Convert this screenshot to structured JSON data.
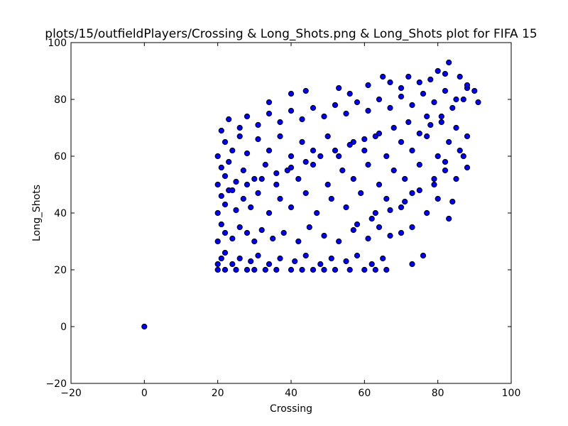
{
  "chart_data": {
    "type": "scatter",
    "title": "plots/15/outfieldPlayers/Crossing & Long_Shots.png & Long_Shots plot for FIFA 15",
    "xlabel": "Crossing",
    "ylabel": "Long_Shots",
    "xlim": [
      -20,
      100
    ],
    "ylim": [
      -20,
      100
    ],
    "xticks": [
      -20,
      0,
      20,
      40,
      60,
      80,
      100
    ],
    "yticks": [
      -20,
      0,
      20,
      40,
      60,
      80,
      100
    ],
    "grid": false,
    "legend": "none",
    "marker_color": "#0000ff",
    "marker_edge_color": "#000000",
    "points": [
      [
        0,
        0
      ],
      [
        20,
        20
      ],
      [
        22,
        20
      ],
      [
        25,
        20
      ],
      [
        28,
        20
      ],
      [
        30,
        20
      ],
      [
        33,
        20
      ],
      [
        36,
        20
      ],
      [
        40,
        20
      ],
      [
        43,
        20
      ],
      [
        46,
        20
      ],
      [
        49,
        20
      ],
      [
        52,
        20
      ],
      [
        56,
        20
      ],
      [
        60,
        20
      ],
      [
        63,
        20
      ],
      [
        66,
        20
      ],
      [
        20,
        22
      ],
      [
        21,
        24
      ],
      [
        22,
        26
      ],
      [
        24,
        22
      ],
      [
        26,
        24
      ],
      [
        29,
        23
      ],
      [
        31,
        25
      ],
      [
        34,
        22
      ],
      [
        37,
        24
      ],
      [
        41,
        23
      ],
      [
        44,
        25
      ],
      [
        48,
        22
      ],
      [
        51,
        24
      ],
      [
        55,
        23
      ],
      [
        58,
        25
      ],
      [
        62,
        22
      ],
      [
        65,
        24
      ],
      [
        20,
        30
      ],
      [
        21,
        36
      ],
      [
        22,
        33
      ],
      [
        24,
        31
      ],
      [
        26,
        35
      ],
      [
        28,
        33
      ],
      [
        30,
        30
      ],
      [
        32,
        34
      ],
      [
        35,
        31
      ],
      [
        38,
        33
      ],
      [
        42,
        30
      ],
      [
        45,
        35
      ],
      [
        49,
        32
      ],
      [
        53,
        30
      ],
      [
        57,
        34
      ],
      [
        61,
        31
      ],
      [
        64,
        35
      ],
      [
        67,
        32
      ],
      [
        70,
        33
      ],
      [
        73,
        35
      ],
      [
        76,
        25
      ],
      [
        73,
        22
      ],
      [
        20,
        40
      ],
      [
        21,
        46
      ],
      [
        22,
        43
      ],
      [
        23,
        48
      ],
      [
        25,
        41
      ],
      [
        27,
        45
      ],
      [
        29,
        42
      ],
      [
        31,
        47
      ],
      [
        34,
        40
      ],
      [
        37,
        45
      ],
      [
        40,
        42
      ],
      [
        44,
        47
      ],
      [
        47,
        40
      ],
      [
        51,
        45
      ],
      [
        55,
        42
      ],
      [
        59,
        47
      ],
      [
        63,
        40
      ],
      [
        66,
        45
      ],
      [
        70,
        42
      ],
      [
        73,
        47
      ],
      [
        77,
        40
      ],
      [
        80,
        45
      ],
      [
        83,
        38
      ],
      [
        84,
        44
      ],
      [
        20,
        50
      ],
      [
        21,
        56
      ],
      [
        22,
        53
      ],
      [
        23,
        58
      ],
      [
        25,
        51
      ],
      [
        27,
        55
      ],
      [
        30,
        52
      ],
      [
        33,
        57
      ],
      [
        36,
        50
      ],
      [
        39,
        55
      ],
      [
        42,
        52
      ],
      [
        46,
        57
      ],
      [
        50,
        50
      ],
      [
        54,
        55
      ],
      [
        57,
        52
      ],
      [
        61,
        57
      ],
      [
        64,
        50
      ],
      [
        68,
        55
      ],
      [
        71,
        52
      ],
      [
        75,
        57
      ],
      [
        79,
        50
      ],
      [
        82,
        55
      ],
      [
        85,
        52
      ],
      [
        88,
        56
      ],
      [
        20,
        60
      ],
      [
        22,
        65
      ],
      [
        24,
        62
      ],
      [
        26,
        67
      ],
      [
        28,
        61
      ],
      [
        31,
        66
      ],
      [
        34,
        62
      ],
      [
        37,
        67
      ],
      [
        40,
        60
      ],
      [
        43,
        65
      ],
      [
        46,
        62
      ],
      [
        50,
        67
      ],
      [
        53,
        60
      ],
      [
        57,
        65
      ],
      [
        60,
        62
      ],
      [
        63,
        67
      ],
      [
        66,
        60
      ],
      [
        70,
        65
      ],
      [
        73,
        62
      ],
      [
        77,
        67
      ],
      [
        80,
        60
      ],
      [
        83,
        65
      ],
      [
        87,
        60
      ],
      [
        21,
        69
      ],
      [
        23,
        73
      ],
      [
        26,
        70
      ],
      [
        28,
        74
      ],
      [
        31,
        71
      ],
      [
        34,
        75
      ],
      [
        37,
        72
      ],
      [
        40,
        76
      ],
      [
        43,
        73
      ],
      [
        46,
        77
      ],
      [
        49,
        74
      ],
      [
        52,
        78
      ],
      [
        55,
        75
      ],
      [
        58,
        79
      ],
      [
        61,
        76
      ],
      [
        64,
        80
      ],
      [
        67,
        77
      ],
      [
        70,
        81
      ],
      [
        73,
        78
      ],
      [
        76,
        82
      ],
      [
        79,
        79
      ],
      [
        82,
        83
      ],
      [
        85,
        80
      ],
      [
        88,
        84
      ],
      [
        91,
        79
      ],
      [
        34,
        79
      ],
      [
        40,
        82
      ],
      [
        44,
        83
      ],
      [
        53,
        84
      ],
      [
        56,
        82
      ],
      [
        61,
        85
      ],
      [
        65,
        88
      ],
      [
        67,
        86
      ],
      [
        70,
        84
      ],
      [
        72,
        88
      ],
      [
        75,
        86
      ],
      [
        78,
        87
      ],
      [
        80,
        90
      ],
      [
        82,
        89
      ],
      [
        83,
        93
      ],
      [
        86,
        88
      ],
      [
        88,
        85
      ],
      [
        90,
        83
      ],
      [
        87,
        80
      ],
      [
        84,
        77
      ],
      [
        81,
        74
      ],
      [
        78,
        71
      ],
      [
        75,
        68
      ],
      [
        58,
        36
      ],
      [
        62,
        38
      ],
      [
        67,
        41
      ],
      [
        71,
        44
      ],
      [
        75,
        48
      ],
      [
        79,
        52
      ],
      [
        82,
        58
      ],
      [
        86,
        62
      ],
      [
        88,
        67
      ],
      [
        85,
        70
      ],
      [
        81,
        72
      ],
      [
        77,
        74
      ],
      [
        72,
        72
      ],
      [
        68,
        70
      ],
      [
        64,
        68
      ],
      [
        60,
        66
      ],
      [
        56,
        64
      ],
      [
        52,
        62
      ],
      [
        48,
        60
      ],
      [
        44,
        58
      ],
      [
        40,
        56
      ],
      [
        36,
        54
      ],
      [
        32,
        52
      ],
      [
        28,
        50
      ],
      [
        24,
        48
      ]
    ]
  }
}
